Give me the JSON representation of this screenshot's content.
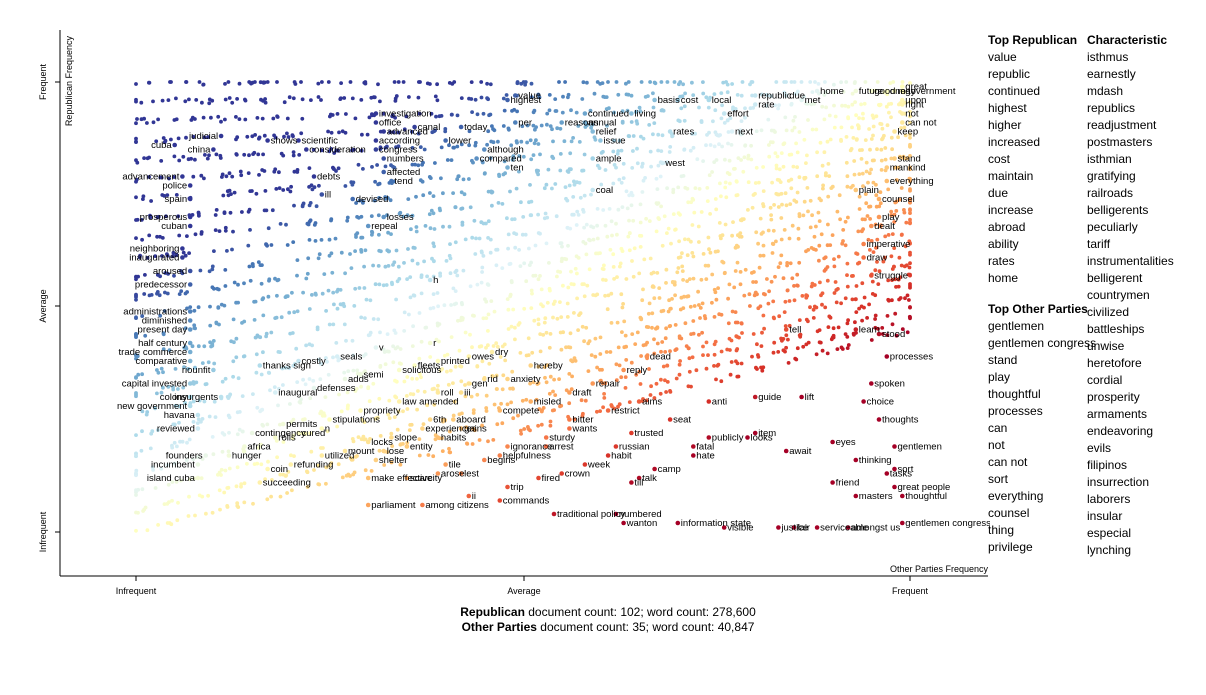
{
  "chart_data": {
    "type": "scatter",
    "title": "",
    "ylabel": "Republican Frequency",
    "xlabel": "Other Parties Frequency",
    "x_ticks": [
      "Infrequent",
      "Average",
      "Frequent"
    ],
    "y_ticks": [
      "Frequent",
      "Average",
      "Infrequent"
    ],
    "grid": false,
    "legend": "none",
    "color_scale": [
      "#a50026",
      "#d73027",
      "#f46d43",
      "#fdae61",
      "#fee090",
      "#ffffbf",
      "#e0f3f8",
      "#abd9e9",
      "#74add1",
      "#4575b4",
      "#313695"
    ],
    "points": [
      {
        "term": "cuba",
        "x": 0.05,
        "y": 0.86
      },
      {
        "term": "china",
        "x": 0.1,
        "y": 0.85
      },
      {
        "term": "judicial",
        "x": 0.11,
        "y": 0.88
      },
      {
        "term": "shows",
        "x": 0.17,
        "y": 0.87
      },
      {
        "term": "scientific",
        "x": 0.21,
        "y": 0.87
      },
      {
        "term": "consideration",
        "x": 0.22,
        "y": 0.85
      },
      {
        "term": "advancement",
        "x": 0.06,
        "y": 0.79
      },
      {
        "term": "debts",
        "x": 0.23,
        "y": 0.79
      },
      {
        "term": "police",
        "x": 0.07,
        "y": 0.77
      },
      {
        "term": "spain",
        "x": 0.07,
        "y": 0.74
      },
      {
        "term": "ill",
        "x": 0.24,
        "y": 0.75
      },
      {
        "term": "devised",
        "x": 0.28,
        "y": 0.74
      },
      {
        "term": "prosperous",
        "x": 0.07,
        "y": 0.7
      },
      {
        "term": "cuban",
        "x": 0.07,
        "y": 0.68
      },
      {
        "term": "repeal",
        "x": 0.3,
        "y": 0.68
      },
      {
        "term": "investigation",
        "x": 0.31,
        "y": 0.93
      },
      {
        "term": "office",
        "x": 0.31,
        "y": 0.91
      },
      {
        "term": "advanced",
        "x": 0.32,
        "y": 0.89
      },
      {
        "term": "according",
        "x": 0.31,
        "y": 0.87
      },
      {
        "term": "congress",
        "x": 0.31,
        "y": 0.85
      },
      {
        "term": "numbers",
        "x": 0.32,
        "y": 0.83
      },
      {
        "term": "affected",
        "x": 0.32,
        "y": 0.8
      },
      {
        "term": "tend",
        "x": 0.33,
        "y": 0.78
      },
      {
        "term": "losses",
        "x": 0.32,
        "y": 0.7
      },
      {
        "term": "canal",
        "x": 0.36,
        "y": 0.9
      },
      {
        "term": "lower",
        "x": 0.4,
        "y": 0.87
      },
      {
        "term": "today",
        "x": 0.42,
        "y": 0.9
      },
      {
        "term": "although",
        "x": 0.45,
        "y": 0.85
      },
      {
        "term": "compared",
        "x": 0.44,
        "y": 0.83
      },
      {
        "term": "highest",
        "x": 0.48,
        "y": 0.96
      },
      {
        "term": "value",
        "x": 0.49,
        "y": 0.97
      },
      {
        "term": "per",
        "x": 0.49,
        "y": 0.91
      },
      {
        "term": "ten",
        "x": 0.48,
        "y": 0.81
      },
      {
        "term": "reasons",
        "x": 0.55,
        "y": 0.91
      },
      {
        "term": "annual",
        "x": 0.58,
        "y": 0.91
      },
      {
        "term": "continued",
        "x": 0.58,
        "y": 0.93
      },
      {
        "term": "relief",
        "x": 0.59,
        "y": 0.89
      },
      {
        "term": "issue",
        "x": 0.6,
        "y": 0.87
      },
      {
        "term": "ample",
        "x": 0.59,
        "y": 0.83
      },
      {
        "term": "coal",
        "x": 0.59,
        "y": 0.76
      },
      {
        "term": "living",
        "x": 0.64,
        "y": 0.93
      },
      {
        "term": "basis",
        "x": 0.67,
        "y": 0.96
      },
      {
        "term": "cost",
        "x": 0.7,
        "y": 0.96
      },
      {
        "term": "rates",
        "x": 0.69,
        "y": 0.89
      },
      {
        "term": "west",
        "x": 0.68,
        "y": 0.82
      },
      {
        "term": "local",
        "x": 0.74,
        "y": 0.96
      },
      {
        "term": "effort",
        "x": 0.76,
        "y": 0.93
      },
      {
        "term": "next",
        "x": 0.77,
        "y": 0.89
      },
      {
        "term": "republic",
        "x": 0.8,
        "y": 0.97
      },
      {
        "term": "rate",
        "x": 0.8,
        "y": 0.95
      },
      {
        "term": "due",
        "x": 0.84,
        "y": 0.97
      },
      {
        "term": "met",
        "x": 0.86,
        "y": 0.96
      },
      {
        "term": "home",
        "x": 0.88,
        "y": 0.98
      },
      {
        "term": "future",
        "x": 0.93,
        "y": 0.98
      },
      {
        "term": "good",
        "x": 0.95,
        "y": 0.98
      },
      {
        "term": "one",
        "x": 0.97,
        "y": 0.98
      },
      {
        "term": "may",
        "x": 0.98,
        "y": 0.98
      },
      {
        "term": "great",
        "x": 0.99,
        "y": 0.99
      },
      {
        "term": "government",
        "x": 0.99,
        "y": 0.98
      },
      {
        "term": "upon",
        "x": 0.99,
        "y": 0.96
      },
      {
        "term": "right",
        "x": 0.99,
        "y": 0.95
      },
      {
        "term": "not",
        "x": 0.99,
        "y": 0.93
      },
      {
        "term": "can not",
        "x": 0.99,
        "y": 0.91
      },
      {
        "term": "keep",
        "x": 0.98,
        "y": 0.89
      },
      {
        "term": "stand",
        "x": 0.98,
        "y": 0.83
      },
      {
        "term": "mankind",
        "x": 0.97,
        "y": 0.81
      },
      {
        "term": "everything",
        "x": 0.97,
        "y": 0.78
      },
      {
        "term": "plain",
        "x": 0.93,
        "y": 0.76
      },
      {
        "term": "counsel",
        "x": 0.96,
        "y": 0.74
      },
      {
        "term": "play",
        "x": 0.96,
        "y": 0.7
      },
      {
        "term": "dealt",
        "x": 0.95,
        "y": 0.68
      },
      {
        "term": "imperative",
        "x": 0.94,
        "y": 0.64
      },
      {
        "term": "draw",
        "x": 0.94,
        "y": 0.61
      },
      {
        "term": "struggle",
        "x": 0.95,
        "y": 0.57
      },
      {
        "term": "neighboring",
        "x": 0.06,
        "y": 0.63
      },
      {
        "term": "inaugurated",
        "x": 0.06,
        "y": 0.61
      },
      {
        "term": "aroused",
        "x": 0.07,
        "y": 0.58
      },
      {
        "term": "predecessor",
        "x": 0.07,
        "y": 0.55
      },
      {
        "term": "h",
        "x": 0.38,
        "y": 0.56
      },
      {
        "term": "administrations",
        "x": 0.07,
        "y": 0.49
      },
      {
        "term": "diminished",
        "x": 0.07,
        "y": 0.47
      },
      {
        "term": "present day",
        "x": 0.07,
        "y": 0.45
      },
      {
        "term": "half century",
        "x": 0.07,
        "y": 0.42
      },
      {
        "term": "trade commerce",
        "x": 0.07,
        "y": 0.4
      },
      {
        "term": "comparative",
        "x": 0.07,
        "y": 0.38
      },
      {
        "term": "riounfit",
        "x": 0.1,
        "y": 0.36
      },
      {
        "term": "thanks sign",
        "x": 0.16,
        "y": 0.37
      },
      {
        "term": "costly",
        "x": 0.21,
        "y": 0.38
      },
      {
        "term": "seals",
        "x": 0.26,
        "y": 0.39
      },
      {
        "term": "v",
        "x": 0.31,
        "y": 0.41
      },
      {
        "term": "r",
        "x": 0.38,
        "y": 0.42
      },
      {
        "term": "dry",
        "x": 0.46,
        "y": 0.4
      },
      {
        "term": "owes",
        "x": 0.43,
        "y": 0.39
      },
      {
        "term": "fleets",
        "x": 0.36,
        "y": 0.37
      },
      {
        "term": "printed",
        "x": 0.39,
        "y": 0.38
      },
      {
        "term": "solicitous",
        "x": 0.34,
        "y": 0.36
      },
      {
        "term": "semi",
        "x": 0.29,
        "y": 0.35
      },
      {
        "term": "adds",
        "x": 0.27,
        "y": 0.34
      },
      {
        "term": "capital invested",
        "x": 0.07,
        "y": 0.33
      },
      {
        "term": "colony",
        "x": 0.07,
        "y": 0.3
      },
      {
        "term": "new government",
        "x": 0.07,
        "y": 0.28
      },
      {
        "term": "insurgents",
        "x": 0.11,
        "y": 0.3
      },
      {
        "term": "inaugural",
        "x": 0.18,
        "y": 0.31
      },
      {
        "term": "defenses",
        "x": 0.23,
        "y": 0.32
      },
      {
        "term": "hereby",
        "x": 0.51,
        "y": 0.37
      },
      {
        "term": "dead",
        "x": 0.66,
        "y": 0.39
      },
      {
        "term": "reply",
        "x": 0.63,
        "y": 0.36
      },
      {
        "term": "gen",
        "x": 0.43,
        "y": 0.33
      },
      {
        "term": "rid",
        "x": 0.45,
        "y": 0.34
      },
      {
        "term": "anxiety",
        "x": 0.48,
        "y": 0.34
      },
      {
        "term": "repair",
        "x": 0.59,
        "y": 0.33
      },
      {
        "term": "draft",
        "x": 0.56,
        "y": 0.31
      },
      {
        "term": "roll",
        "x": 0.39,
        "y": 0.31
      },
      {
        "term": "iii",
        "x": 0.42,
        "y": 0.31
      },
      {
        "term": "law amended",
        "x": 0.34,
        "y": 0.29
      },
      {
        "term": "misled",
        "x": 0.51,
        "y": 0.29
      },
      {
        "term": "aims",
        "x": 0.65,
        "y": 0.29
      },
      {
        "term": "anti",
        "x": 0.74,
        "y": 0.29
      },
      {
        "term": "guide",
        "x": 0.8,
        "y": 0.3
      },
      {
        "term": "lift",
        "x": 0.86,
        "y": 0.3
      },
      {
        "term": "tell",
        "x": 0.84,
        "y": 0.45
      },
      {
        "term": "learn",
        "x": 0.93,
        "y": 0.45
      },
      {
        "term": "stood",
        "x": 0.96,
        "y": 0.44
      },
      {
        "term": "processes",
        "x": 0.97,
        "y": 0.39
      },
      {
        "term": "spoken",
        "x": 0.95,
        "y": 0.33
      },
      {
        "term": "choice",
        "x": 0.94,
        "y": 0.29
      },
      {
        "term": "havana",
        "x": 0.08,
        "y": 0.26
      },
      {
        "term": "reviewed",
        "x": 0.08,
        "y": 0.23
      },
      {
        "term": "propriety",
        "x": 0.29,
        "y": 0.27
      },
      {
        "term": "stipulations",
        "x": 0.25,
        "y": 0.25
      },
      {
        "term": "permits",
        "x": 0.19,
        "y": 0.24
      },
      {
        "term": "contingency",
        "x": 0.15,
        "y": 0.22
      },
      {
        "term": "rolls",
        "x": 0.18,
        "y": 0.21
      },
      {
        "term": "cured",
        "x": 0.21,
        "y": 0.22
      },
      {
        "term": "n",
        "x": 0.24,
        "y": 0.23
      },
      {
        "term": "compete",
        "x": 0.47,
        "y": 0.27
      },
      {
        "term": "restrict",
        "x": 0.61,
        "y": 0.27
      },
      {
        "term": "bitter",
        "x": 0.56,
        "y": 0.25
      },
      {
        "term": "wants",
        "x": 0.56,
        "y": 0.23
      },
      {
        "term": "seat",
        "x": 0.69,
        "y": 0.25
      },
      {
        "term": "6th",
        "x": 0.38,
        "y": 0.25
      },
      {
        "term": "aboard",
        "x": 0.41,
        "y": 0.25
      },
      {
        "term": "gains",
        "x": 0.42,
        "y": 0.23
      },
      {
        "term": "experiences",
        "x": 0.37,
        "y": 0.23
      },
      {
        "term": "habits",
        "x": 0.39,
        "y": 0.21
      },
      {
        "term": "slope",
        "x": 0.33,
        "y": 0.21
      },
      {
        "term": "entity",
        "x": 0.35,
        "y": 0.19
      },
      {
        "term": "locks",
        "x": 0.3,
        "y": 0.2
      },
      {
        "term": "lose",
        "x": 0.32,
        "y": 0.18
      },
      {
        "term": "mount",
        "x": 0.27,
        "y": 0.18
      },
      {
        "term": "utilized",
        "x": 0.24,
        "y": 0.17
      },
      {
        "term": "shelter",
        "x": 0.31,
        "y": 0.16
      },
      {
        "term": "trusted",
        "x": 0.64,
        "y": 0.22
      },
      {
        "term": "item",
        "x": 0.8,
        "y": 0.22
      },
      {
        "term": "looks",
        "x": 0.79,
        "y": 0.21
      },
      {
        "term": "publicly",
        "x": 0.74,
        "y": 0.21
      },
      {
        "term": "fatal",
        "x": 0.72,
        "y": 0.19
      },
      {
        "term": "hate",
        "x": 0.72,
        "y": 0.17
      },
      {
        "term": "await",
        "x": 0.84,
        "y": 0.18
      },
      {
        "term": "eyes",
        "x": 0.9,
        "y": 0.2
      },
      {
        "term": "thoughts",
        "x": 0.96,
        "y": 0.25
      },
      {
        "term": "gentlemen",
        "x": 0.98,
        "y": 0.19
      },
      {
        "term": "sturdy",
        "x": 0.53,
        "y": 0.21
      },
      {
        "term": "arrest",
        "x": 0.53,
        "y": 0.19
      },
      {
        "term": "ignorance",
        "x": 0.48,
        "y": 0.19
      },
      {
        "term": "helpfulness",
        "x": 0.47,
        "y": 0.17
      },
      {
        "term": "begins",
        "x": 0.45,
        "y": 0.16
      },
      {
        "term": "russian",
        "x": 0.62,
        "y": 0.19
      },
      {
        "term": "habit",
        "x": 0.61,
        "y": 0.17
      },
      {
        "term": "week",
        "x": 0.58,
        "y": 0.15
      },
      {
        "term": "founders",
        "x": 0.09,
        "y": 0.17
      },
      {
        "term": "hunger",
        "x": 0.12,
        "y": 0.17
      },
      {
        "term": "africa",
        "x": 0.14,
        "y": 0.19
      },
      {
        "term": "incumbent",
        "x": 0.08,
        "y": 0.15
      },
      {
        "term": "island cuba",
        "x": 0.08,
        "y": 0.12
      },
      {
        "term": "coin",
        "x": 0.17,
        "y": 0.14
      },
      {
        "term": "refunding",
        "x": 0.2,
        "y": 0.15
      },
      {
        "term": "succeeding",
        "x": 0.16,
        "y": 0.11
      },
      {
        "term": "make effective",
        "x": 0.3,
        "y": 0.12
      },
      {
        "term": "tile",
        "x": 0.4,
        "y": 0.15
      },
      {
        "term": "arose",
        "x": 0.39,
        "y": 0.13
      },
      {
        "term": "lest",
        "x": 0.42,
        "y": 0.13
      },
      {
        "term": "scarcity",
        "x": 0.35,
        "y": 0.12
      },
      {
        "term": "fired",
        "x": 0.52,
        "y": 0.12
      },
      {
        "term": "crown",
        "x": 0.55,
        "y": 0.13
      },
      {
        "term": "camp",
        "x": 0.67,
        "y": 0.14
      },
      {
        "term": "till",
        "x": 0.64,
        "y": 0.11
      },
      {
        "term": "talk",
        "x": 0.65,
        "y": 0.12
      },
      {
        "term": "thinking",
        "x": 0.93,
        "y": 0.16
      },
      {
        "term": "sort",
        "x": 0.98,
        "y": 0.14
      },
      {
        "term": "tasks",
        "x": 0.97,
        "y": 0.13
      },
      {
        "term": "friend",
        "x": 0.9,
        "y": 0.11
      },
      {
        "term": "great people",
        "x": 0.98,
        "y": 0.1
      },
      {
        "term": "masters",
        "x": 0.93,
        "y": 0.08
      },
      {
        "term": "thoughtful",
        "x": 0.99,
        "y": 0.08
      },
      {
        "term": "trip",
        "x": 0.48,
        "y": 0.1
      },
      {
        "term": "ii",
        "x": 0.43,
        "y": 0.08
      },
      {
        "term": "commands",
        "x": 0.47,
        "y": 0.07
      },
      {
        "term": "parliament",
        "x": 0.3,
        "y": 0.06
      },
      {
        "term": "among citizens",
        "x": 0.37,
        "y": 0.06
      },
      {
        "term": "traditional policy",
        "x": 0.54,
        "y": 0.04
      },
      {
        "term": "numbered",
        "x": 0.62,
        "y": 0.04
      },
      {
        "term": "wanton",
        "x": 0.63,
        "y": 0.02
      },
      {
        "term": "information state",
        "x": 0.7,
        "y": 0.02
      },
      {
        "term": "visible",
        "x": 0.76,
        "y": 0.01
      },
      {
        "term": "justice",
        "x": 0.83,
        "y": 0.01
      },
      {
        "term": "fair",
        "x": 0.85,
        "y": 0.01
      },
      {
        "term": "serviceable",
        "x": 0.88,
        "y": 0.01
      },
      {
        "term": "amongst us",
        "x": 0.92,
        "y": 0.01
      },
      {
        "term": "gentlemen congress",
        "x": 0.99,
        "y": 0.02
      }
    ]
  },
  "sidebar": {
    "top_republican": {
      "title": "Top Republican",
      "items": [
        "value",
        "republic",
        "continued",
        "highest",
        "higher",
        "increased",
        "cost",
        "maintain",
        "due",
        "increase",
        "abroad",
        "ability",
        "rates",
        "home"
      ]
    },
    "top_other": {
      "title": "Top Other Parties",
      "items": [
        "gentlemen",
        "gentlemen congress",
        "stand",
        "play",
        "thoughtful",
        "processes",
        "can",
        "not",
        "can not",
        "sort",
        "everything",
        "counsel",
        "thing",
        "privilege"
      ]
    },
    "characteristic": {
      "title": "Characteristic",
      "items": [
        "isthmus",
        "earnestly",
        "mdash",
        "republics",
        "readjustment",
        "postmasters",
        "isthmian",
        "gratifying",
        "railroads",
        "belligerents",
        "peculiarly",
        "tariff",
        "instrumentalities",
        "belligerent",
        "countrymen",
        "civilized",
        "battleships",
        "unwise",
        "heretofore",
        "cordial",
        "prosperity",
        "armaments",
        "endeavoring",
        "evils",
        "filipinos",
        "insurrection",
        "laborers",
        "insular",
        "especial",
        "lynching"
      ]
    }
  },
  "footer": {
    "rep_label": "Republican",
    "rep_counts": " document count: 102; word count: 278,600",
    "other_label": "Other Parties",
    "other_counts": " document count: 35; word count: 40,847"
  }
}
